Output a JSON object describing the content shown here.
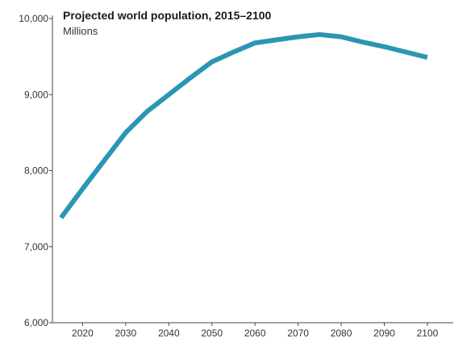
{
  "colors": {
    "line": "#2b96b3",
    "axis": "#444444",
    "background": "#ffffff"
  },
  "chart_data": {
    "type": "line",
    "title": "Projected world population, 2015–2100",
    "subtitle": "Millions",
    "xlabel": "",
    "ylabel": "",
    "x": [
      2015,
      2020,
      2025,
      2030,
      2035,
      2040,
      2045,
      2050,
      2055,
      2060,
      2065,
      2070,
      2075,
      2080,
      2085,
      2090,
      2095,
      2100
    ],
    "series": [
      {
        "values": [
          7380,
          7760,
          8130,
          8500,
          8780,
          9000,
          9220,
          9430,
          9560,
          9680,
          9720,
          9760,
          9790,
          9760,
          9690,
          9630,
          9560,
          9490
        ]
      }
    ],
    "xlim": [
      2013,
      2106
    ],
    "ylim": [
      6000,
      10000
    ],
    "x_ticks": [
      2020,
      2030,
      2040,
      2050,
      2060,
      2070,
      2080,
      2090,
      2100
    ],
    "x_tick_labels": [
      "2020",
      "2030",
      "2040",
      "2050",
      "2060",
      "2070",
      "2080",
      "2090",
      "2100"
    ],
    "y_ticks": [
      6000,
      7000,
      8000,
      9000,
      10000
    ],
    "y_tick_labels": [
      "6,000",
      "7,000",
      "8,000",
      "9,000",
      "10,000"
    ],
    "grid": false,
    "legend": "none"
  }
}
